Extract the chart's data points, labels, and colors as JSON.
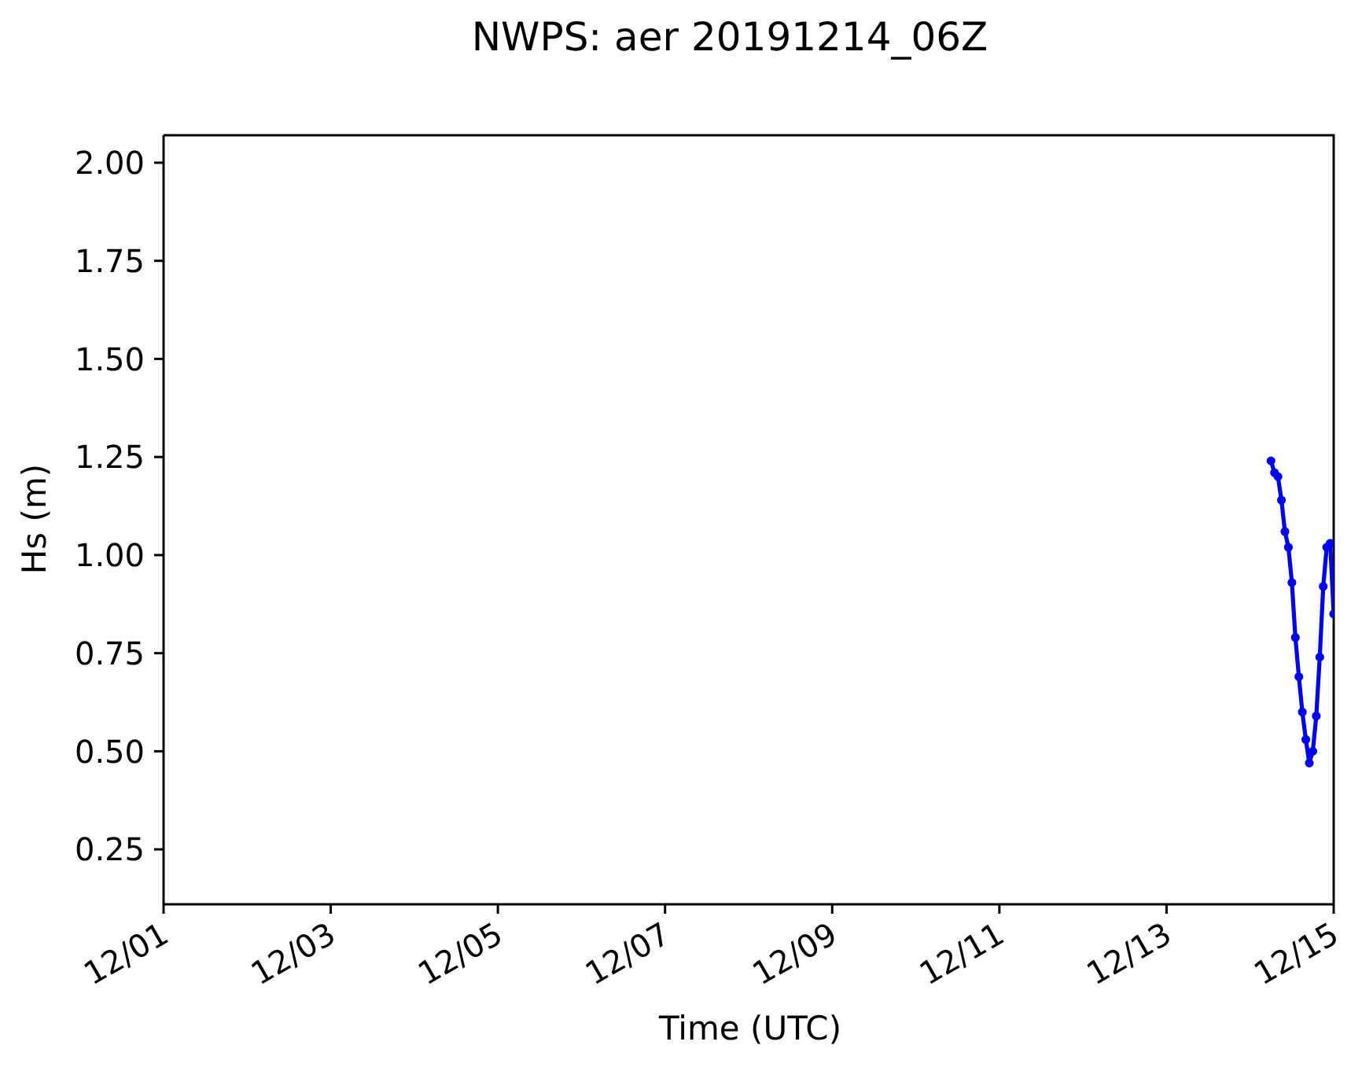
{
  "chart_data": {
    "type": "line",
    "title": "NWPS: aer 20191214_06Z",
    "xlabel": "Time (UTC)",
    "ylabel": "Hs (m)",
    "x": [
      "2019-12-14T06:00",
      "2019-12-14T07:00",
      "2019-12-14T08:00",
      "2019-12-14T09:00",
      "2019-12-14T10:00",
      "2019-12-14T11:00",
      "2019-12-14T12:00",
      "2019-12-14T13:00",
      "2019-12-14T14:00",
      "2019-12-14T15:00",
      "2019-12-14T16:00",
      "2019-12-14T17:00",
      "2019-12-14T18:00",
      "2019-12-14T19:00",
      "2019-12-14T20:00",
      "2019-12-14T21:00",
      "2019-12-14T22:00",
      "2019-12-14T23:00",
      "2019-12-15T00:00"
    ],
    "series": [
      {
        "color": "#0000ff",
        "values": [
          1.24,
          1.21,
          1.2,
          1.14,
          1.06,
          1.02,
          0.93,
          0.79,
          0.69,
          0.6,
          0.53,
          0.47,
          0.5,
          0.59,
          0.74,
          0.92,
          1.02,
          1.03,
          0.85
        ]
      }
    ],
    "xlim": [
      "2019-12-01",
      "2019-12-15"
    ],
    "xticks": [
      {
        "value": "2019-12-01",
        "label": "12/01"
      },
      {
        "value": "2019-12-03",
        "label": "12/03"
      },
      {
        "value": "2019-12-05",
        "label": "12/05"
      },
      {
        "value": "2019-12-07",
        "label": "12/07"
      },
      {
        "value": "2019-12-09",
        "label": "12/09"
      },
      {
        "value": "2019-12-11",
        "label": "12/11"
      },
      {
        "value": "2019-12-13",
        "label": "12/13"
      },
      {
        "value": "2019-12-15",
        "label": "12/15"
      }
    ],
    "ylim": [
      0.11,
      2.07
    ],
    "yticks": [
      0.25,
      {
        "value": 0.5,
        "label": "0.50"
      },
      0.75,
      {
        "value": 1,
        "label": "1.00"
      },
      1.25,
      {
        "value": 1.5,
        "label": "1.50"
      },
      1.75,
      {
        "value": 2,
        "label": "2.00"
      }
    ],
    "marker": "circle",
    "line_style": "solid"
  }
}
